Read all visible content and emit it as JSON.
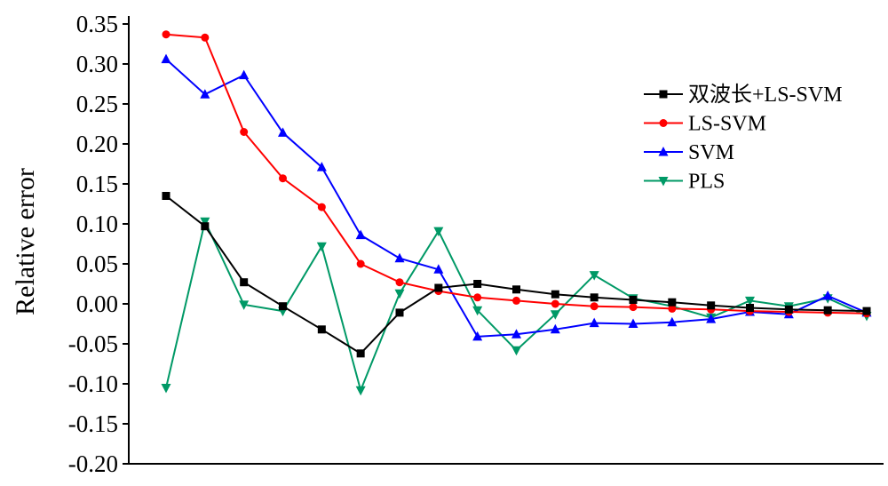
{
  "chart_data": {
    "type": "line",
    "title": "",
    "xlabel": "",
    "ylabel": "Relative error",
    "ylim": [
      -0.2,
      0.35
    ],
    "yticks": [
      "-0.20",
      "-0.15",
      "-0.10",
      "-0.05",
      "0.00",
      "0.05",
      "0.10",
      "0.15",
      "0.20",
      "0.25",
      "0.30",
      "0.35"
    ],
    "x": [
      1,
      2,
      3,
      4,
      5,
      6,
      7,
      8,
      9,
      10,
      11,
      12,
      13,
      14,
      15,
      16,
      17,
      18,
      19
    ],
    "grid": false,
    "legend_position": "top-right",
    "series": [
      {
        "name": "双波长+LS-SVM",
        "color": "#000000",
        "marker": "square",
        "values": [
          0.135,
          0.097,
          0.027,
          -0.003,
          -0.032,
          -0.062,
          -0.011,
          0.02,
          0.025,
          0.018,
          0.012,
          0.008,
          0.005,
          0.002,
          -0.002,
          -0.005,
          -0.007,
          -0.008,
          -0.009
        ]
      },
      {
        "name": "LS-SVM",
        "color": "#ff0000",
        "marker": "circle",
        "values": [
          0.337,
          0.333,
          0.215,
          0.157,
          0.121,
          0.05,
          0.027,
          0.016,
          0.008,
          0.004,
          0.0,
          -0.003,
          -0.004,
          -0.006,
          -0.007,
          -0.009,
          -0.01,
          -0.011,
          -0.012
        ]
      },
      {
        "name": "SVM",
        "color": "#0000ff",
        "marker": "triangle-up",
        "values": [
          0.306,
          0.262,
          0.286,
          0.214,
          0.171,
          0.086,
          0.057,
          0.043,
          -0.041,
          -0.038,
          -0.032,
          -0.024,
          -0.025,
          -0.023,
          -0.019,
          -0.01,
          -0.013,
          0.01,
          -0.011
        ]
      },
      {
        "name": "PLS",
        "color": "#009966",
        "marker": "triangle-down",
        "values": [
          -0.105,
          0.103,
          -0.001,
          -0.009,
          0.072,
          -0.108,
          0.013,
          0.091,
          -0.008,
          -0.058,
          -0.013,
          0.036,
          0.007,
          -0.003,
          -0.017,
          0.004,
          -0.003,
          0.007,
          -0.015
        ]
      }
    ]
  }
}
